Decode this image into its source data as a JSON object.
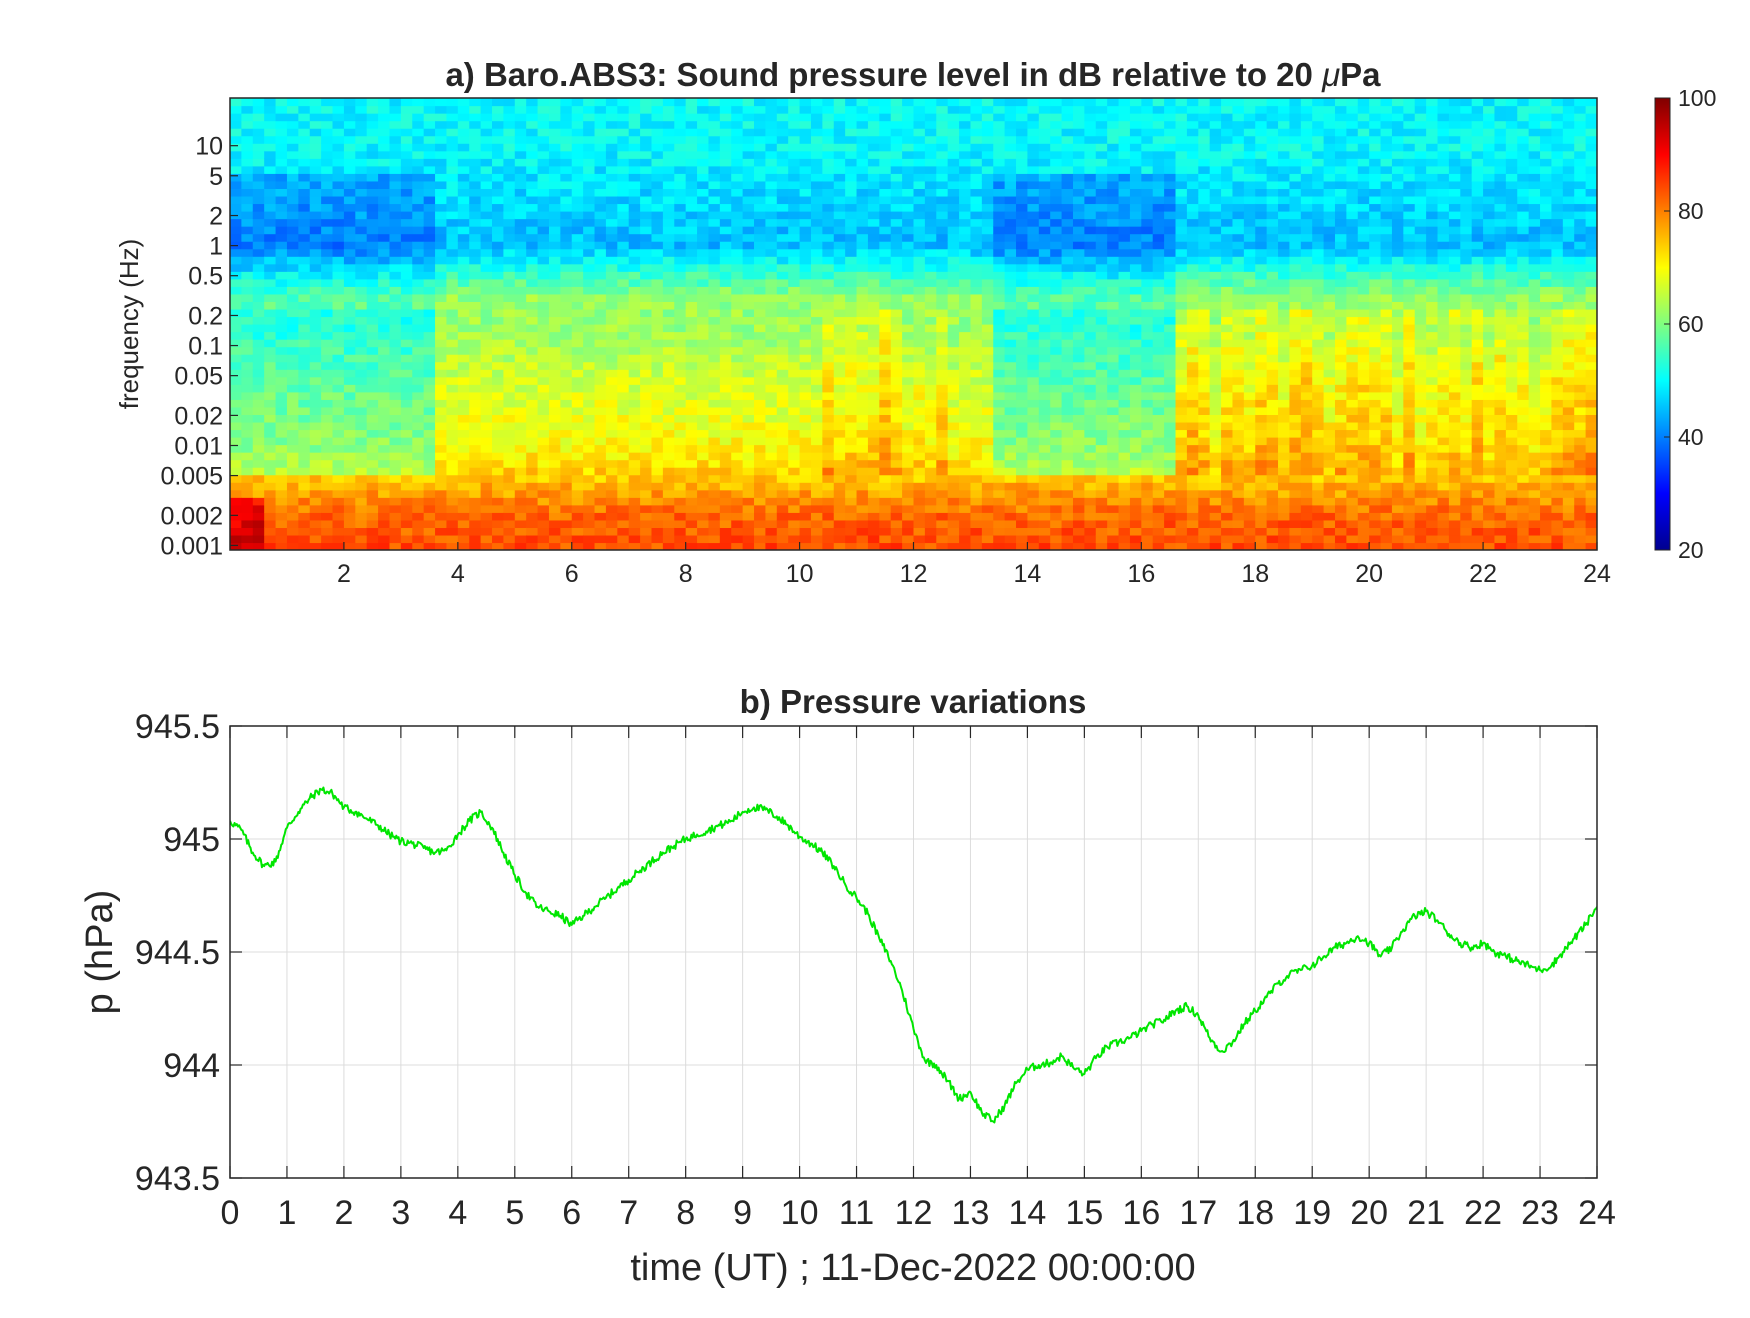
{
  "chart_data": [
    {
      "type": "heatmap",
      "title": "a) Baro.ABS3: Sound pressure level in dB relative to 20 μPa",
      "title_prefix": "a) Baro.ABS3: Sound pressure level in dB relative to 20 ",
      "title_mu": "μ",
      "title_suffix": "Pa",
      "xlabel": "",
      "ylabel": "frequency (Hz)",
      "x_range": [
        0,
        24
      ],
      "x_ticks": [
        2,
        4,
        6,
        8,
        10,
        12,
        14,
        16,
        18,
        20,
        22,
        24
      ],
      "y_scale": "log",
      "y_range": [
        0.0009,
        30
      ],
      "y_ticks": [
        0.001,
        0.002,
        0.005,
        0.01,
        0.02,
        0.05,
        0.1,
        0.2,
        0.5,
        1,
        2,
        5,
        10
      ],
      "y_tick_labels": [
        "0.001",
        "0.002",
        "0.005",
        "0.01",
        "0.02",
        "0.05",
        "0.1",
        "0.2",
        "0.5",
        "1",
        "2",
        "5",
        "10"
      ],
      "colormap": "jet",
      "colorbar": {
        "range": [
          20,
          100
        ],
        "ticks": [
          20,
          40,
          60,
          80,
          100
        ]
      },
      "bands_db": [
        {
          "freq_hz": 0.001,
          "level_db": 84
        },
        {
          "freq_hz": 0.002,
          "level_db": 82
        },
        {
          "freq_hz": 0.005,
          "level_db": 74
        },
        {
          "freq_hz": 0.01,
          "level_db": 70
        },
        {
          "freq_hz": 0.05,
          "level_db": 66
        },
        {
          "freq_hz": 0.15,
          "level_db": 62
        },
        {
          "freq_hz": 0.3,
          "level_db": 62
        },
        {
          "freq_hz": 1,
          "level_db": 45
        },
        {
          "freq_hz": 10,
          "level_db": 50
        }
      ],
      "quiet_periods_h": [
        [
          0,
          3.5
        ],
        [
          13.5,
          16.5
        ]
      ],
      "active_periods_h": [
        [
          10.5,
          12.5
        ],
        [
          16.7,
          24
        ]
      ]
    },
    {
      "type": "line",
      "title": "b) Pressure variations",
      "xlabel": "time (UT) ; 11-Dec-2022 00:00:00",
      "ylabel": "p (hPa)",
      "xlim": [
        0,
        24
      ],
      "ylim": [
        943.5,
        945.5
      ],
      "x_ticks": [
        0,
        1,
        2,
        3,
        4,
        5,
        6,
        7,
        8,
        9,
        10,
        11,
        12,
        13,
        14,
        15,
        16,
        17,
        18,
        19,
        20,
        21,
        22,
        23,
        24
      ],
      "y_ticks": [
        943.5,
        944,
        944.5,
        945,
        945.5
      ],
      "y_tick_labels": [
        "943.5",
        "944",
        "944.5",
        "945",
        "945.5"
      ],
      "grid": true,
      "series": [
        {
          "color": "#00e600",
          "x": [
            0,
            0.2,
            0.4,
            0.6,
            0.8,
            1.0,
            1.2,
            1.4,
            1.6,
            1.8,
            2.0,
            2.2,
            2.4,
            2.6,
            2.8,
            3.0,
            3.2,
            3.4,
            3.6,
            3.8,
            4.0,
            4.2,
            4.4,
            4.6,
            4.8,
            5.0,
            5.2,
            5.4,
            5.6,
            5.8,
            6.0,
            6.2,
            6.4,
            6.6,
            6.8,
            7.0,
            7.2,
            7.4,
            7.6,
            7.8,
            8.0,
            8.2,
            8.4,
            8.6,
            8.8,
            9.0,
            9.2,
            9.4,
            9.6,
            9.8,
            10.0,
            10.2,
            10.4,
            10.6,
            10.8,
            11.0,
            11.2,
            11.4,
            11.6,
            11.8,
            12.0,
            12.2,
            12.4,
            12.6,
            12.8,
            13.0,
            13.2,
            13.4,
            13.6,
            13.8,
            14.0,
            14.2,
            14.4,
            14.6,
            14.8,
            15.0,
            15.2,
            15.4,
            15.6,
            15.8,
            16.0,
            16.2,
            16.4,
            16.6,
            16.8,
            17.0,
            17.2,
            17.4,
            17.6,
            17.8,
            18.0,
            18.2,
            18.4,
            18.6,
            18.8,
            19.0,
            19.2,
            19.4,
            19.6,
            19.8,
            20.0,
            20.2,
            20.4,
            20.6,
            20.8,
            21.0,
            21.2,
            21.4,
            21.6,
            21.8,
            22.0,
            22.2,
            22.4,
            22.6,
            22.8,
            23.0,
            23.2,
            23.4,
            23.6,
            23.8,
            24.0
          ],
          "values": [
            945.08,
            945.04,
            944.94,
            944.88,
            944.9,
            945.05,
            945.12,
            945.18,
            945.22,
            945.2,
            945.14,
            945.12,
            945.09,
            945.06,
            945.02,
            944.99,
            944.98,
            944.96,
            944.94,
            944.95,
            945.02,
            945.08,
            945.12,
            945.05,
            944.94,
            944.84,
            944.76,
            944.7,
            944.68,
            944.66,
            944.62,
            944.66,
            944.7,
            944.74,
            944.78,
            944.82,
            944.86,
            944.9,
            944.94,
            944.97,
            945.0,
            945.02,
            945.04,
            945.06,
            945.08,
            945.12,
            945.14,
            945.13,
            945.1,
            945.06,
            945.01,
            944.98,
            944.94,
            944.88,
            944.8,
            944.74,
            944.67,
            944.56,
            944.46,
            944.33,
            944.16,
            944.02,
            944.0,
            943.93,
            943.85,
            943.88,
            943.79,
            943.75,
            943.82,
            943.92,
            943.98,
            944.0,
            944.01,
            944.04,
            943.99,
            943.96,
            944.03,
            944.08,
            944.1,
            944.12,
            944.15,
            944.18,
            944.2,
            944.24,
            944.26,
            944.22,
            944.12,
            944.06,
            944.1,
            944.18,
            944.24,
            944.3,
            944.36,
            944.4,
            944.42,
            944.44,
            944.48,
            944.52,
            944.54,
            944.57,
            944.54,
            944.48,
            944.52,
            944.6,
            944.66,
            944.68,
            944.64,
            944.58,
            944.54,
            944.52,
            944.54,
            944.5,
            944.48,
            944.46,
            944.44,
            944.42,
            944.44,
            944.5,
            944.56,
            944.62,
            944.7
          ]
        }
      ]
    }
  ]
}
